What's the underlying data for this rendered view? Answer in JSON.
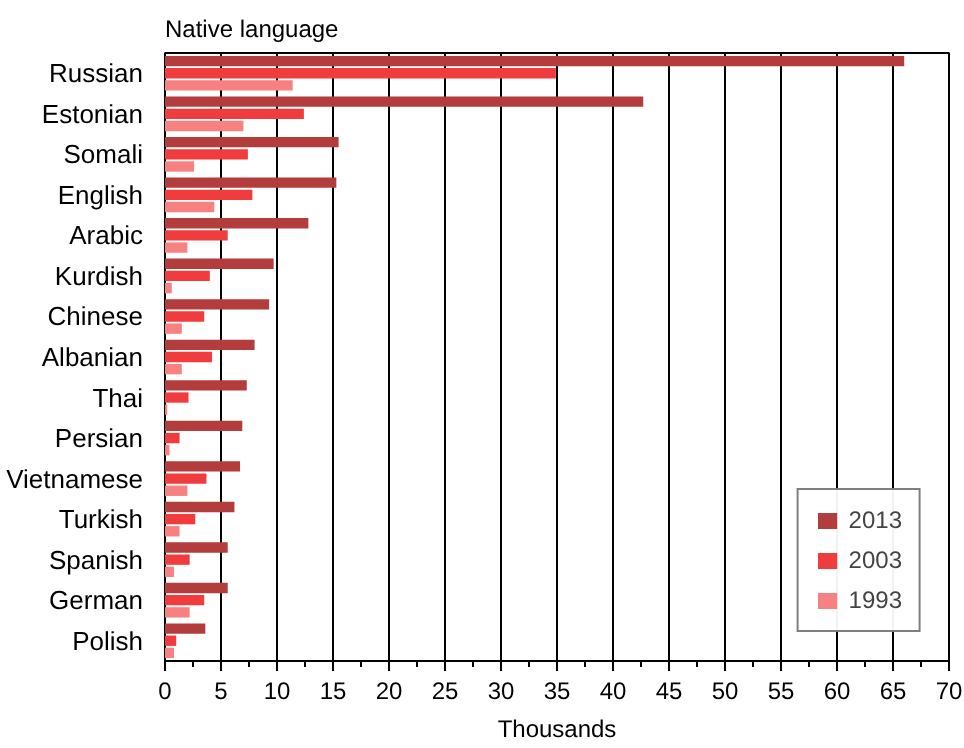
{
  "chart_data": {
    "type": "bar",
    "orientation": "horizontal",
    "title": "Native language",
    "xlabel": "Thousands",
    "categories": [
      "Russian",
      "Estonian",
      "Somali",
      "English",
      "Arabic",
      "Kurdish",
      "Chinese",
      "Albanian",
      "Thai",
      "Persian",
      "Vietnamese",
      "Turkish",
      "Spanish",
      "German",
      "Polish"
    ],
    "series": [
      {
        "name": "2013",
        "color": "#b33c3c",
        "values": [
          66.0,
          42.7,
          15.5,
          15.3,
          12.8,
          9.7,
          9.3,
          8.0,
          7.3,
          6.9,
          6.7,
          6.2,
          5.6,
          5.6,
          3.6
        ]
      },
      {
        "name": "2003",
        "color": "#f03c3c",
        "values": [
          34.9,
          12.4,
          7.4,
          7.8,
          5.6,
          4.0,
          3.5,
          4.2,
          2.1,
          1.3,
          3.7,
          2.7,
          2.2,
          3.5,
          1.0
        ]
      },
      {
        "name": "1993",
        "color": "#f78080",
        "values": [
          11.4,
          7.0,
          2.6,
          4.4,
          2.0,
          0.6,
          1.5,
          1.5,
          0.2,
          0.4,
          2.0,
          1.3,
          0.8,
          2.2,
          0.8
        ]
      }
    ],
    "xlim": [
      0,
      70
    ],
    "xticks": [
      0,
      5,
      10,
      15,
      20,
      25,
      30,
      35,
      40,
      45,
      50,
      55,
      60,
      65,
      70
    ],
    "grid": "x",
    "legend": "bottom right"
  }
}
